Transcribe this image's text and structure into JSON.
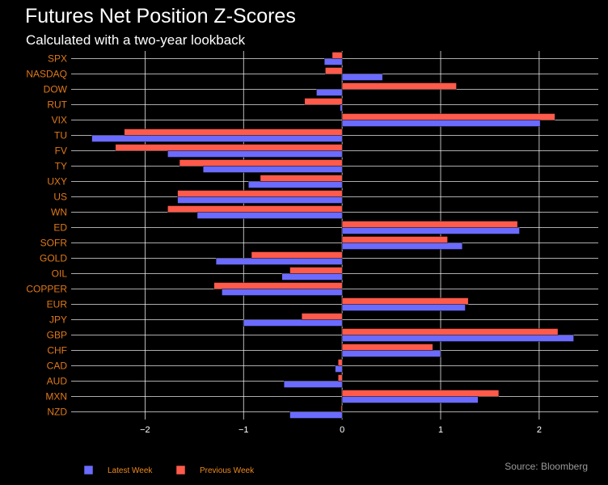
{
  "title": "Futures Net Position Z-Scores",
  "subtitle": "Calculated with a two-year lookback",
  "source": "Source: Bloomberg",
  "colors": {
    "latest": "#6b6bff",
    "previous": "#ff5a4a",
    "category_text": "#e07818",
    "grid": "#ffffff",
    "background": "#000000"
  },
  "chart_data": {
    "type": "bar",
    "orientation": "horizontal",
    "categories": [
      "SPX",
      "NASDAQ",
      "DOW",
      "RUT",
      "VIX",
      "TU",
      "FV",
      "TY",
      "UXY",
      "US",
      "WN",
      "ED",
      "SOFR",
      "GOLD",
      "OIL",
      "COPPER",
      "EUR",
      "JPY",
      "GBP",
      "CHF",
      "CAD",
      "AUD",
      "MXN",
      "NZD"
    ],
    "series": [
      {
        "name": "Latest Week",
        "values": [
          -0.18,
          0.41,
          -0.26,
          -0.02,
          2.01,
          -2.54,
          -1.77,
          -1.41,
          -0.95,
          -1.67,
          -1.47,
          1.8,
          1.22,
          -1.28,
          -0.61,
          -1.22,
          1.25,
          -1.0,
          2.35,
          1.0,
          -0.07,
          -0.59,
          1.38,
          -0.53
        ]
      },
      {
        "name": "Previous Week",
        "values": [
          -0.1,
          -0.17,
          1.16,
          -0.38,
          2.16,
          -2.21,
          -2.3,
          -1.65,
          -0.83,
          -1.67,
          -1.77,
          1.78,
          1.07,
          -0.92,
          -0.53,
          -1.3,
          1.28,
          -0.41,
          2.19,
          0.92,
          -0.04,
          -0.04,
          1.59,
          -0.01
        ]
      }
    ],
    "xlim": [
      -2.75,
      2.6
    ],
    "xticks": [
      -2,
      -1,
      0,
      1,
      2
    ],
    "xtick_labels": [
      "−2",
      "−1",
      "0",
      "1",
      "2"
    ],
    "grid": true,
    "legend_position": "bottom-left"
  }
}
